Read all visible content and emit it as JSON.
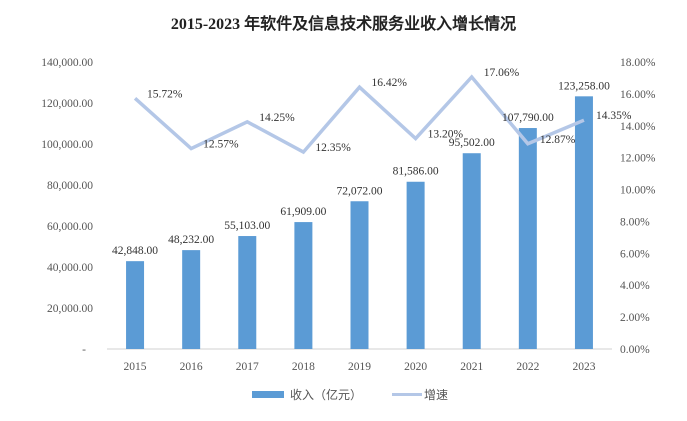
{
  "chart_data": {
    "type": "bar+line",
    "title": "2015-2023 年软件及信息技术服务业收入增长情况",
    "categories": [
      "2015",
      "2016",
      "2017",
      "2018",
      "2019",
      "2020",
      "2021",
      "2022",
      "2023"
    ],
    "series": [
      {
        "name": "收入（亿元）",
        "type": "bar",
        "axis": "left",
        "color": "#5B9BD5",
        "values": [
          42848,
          48232,
          55103,
          61909,
          72072,
          81586,
          95502,
          107790,
          123258
        ],
        "labels": [
          "42,848.00",
          "48,232.00",
          "55,103.00",
          "61,909.00",
          "72,072.00",
          "81,586.00",
          "95,502.00",
          "107,790.00",
          "123,258.00"
        ]
      },
      {
        "name": "增速",
        "type": "line",
        "axis": "right",
        "color": "#B4C7E7",
        "values": [
          15.72,
          12.57,
          14.25,
          12.35,
          16.42,
          13.2,
          17.06,
          12.87,
          14.35
        ],
        "labels": [
          "15.72%",
          "12.57%",
          "14.25%",
          "12.35%",
          "16.42%",
          "13.20%",
          "17.06%",
          "12.87%",
          "14.35%"
        ]
      }
    ],
    "y_left": {
      "range": [
        0,
        140000
      ],
      "ticks": [
        "-",
        "20,000.00",
        "40,000.00",
        "60,000.00",
        "80,000.00",
        "100,000.00",
        "120,000.00",
        "140,000.00"
      ]
    },
    "y_right": {
      "range": [
        0,
        18
      ],
      "ticks": [
        "0.00%",
        "2.00%",
        "4.00%",
        "6.00%",
        "8.00%",
        "10.00%",
        "12.00%",
        "14.00%",
        "16.00%",
        "18.00%"
      ]
    },
    "grid": false,
    "legend": "bottom"
  }
}
